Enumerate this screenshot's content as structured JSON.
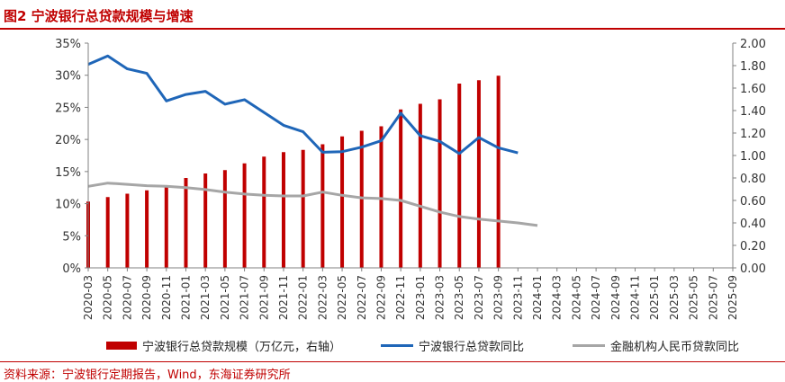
{
  "figure_title": "图2  宁波银行总贷款规模与增速",
  "source_note": "资料来源：宁波银行定期报告，Wind，东海证券研究所",
  "colors": {
    "bar": "#c00000",
    "loan_growth": "#1f66b8",
    "system_growth": "#a6a6a6",
    "title": "#c00000"
  },
  "chart_data": {
    "type": "bar+line",
    "title": "宁波银行总贷款规模与增速",
    "categories": [
      "2020-03",
      "2020-05",
      "2020-07",
      "2020-09",
      "2020-11",
      "2021-01",
      "2021-03",
      "2021-05",
      "2021-07",
      "2021-09",
      "2021-11",
      "2022-01",
      "2022-03",
      "2022-05",
      "2022-07",
      "2022-09",
      "2022-11",
      "2023-01",
      "2023-03",
      "2023-05",
      "2023-07",
      "2023-09",
      "2023-11",
      "2024-01",
      "2024-03",
      "2024-05",
      "2024-07",
      "2024-09",
      "2024-11",
      "2025-01",
      "2025-03",
      "2025-05",
      "2025-07",
      "2025-09"
    ],
    "left_axis": {
      "min": 0,
      "max": 35,
      "step": 5,
      "tick_labels": [
        "0%",
        "5%",
        "10%",
        "15%",
        "20%",
        "25%",
        "30%",
        "35%"
      ]
    },
    "right_axis": {
      "min": 0,
      "max": 2.0,
      "step": 0.2,
      "tick_labels": [
        "0.00",
        "0.20",
        "0.40",
        "0.60",
        "0.80",
        "1.00",
        "1.20",
        "1.40",
        "1.60",
        "1.80",
        "2.00"
      ]
    },
    "series": [
      {
        "name": "宁波银行总贷款规模（万亿元，右轴）",
        "kind": "bar",
        "axis": "right",
        "points": [
          [
            0,
            0.59
          ],
          [
            2,
            0.63
          ],
          [
            4,
            0.66
          ],
          [
            6,
            0.69
          ],
          [
            8,
            0.73
          ],
          [
            10,
            0.8
          ],
          [
            12,
            0.84
          ],
          [
            14,
            0.87
          ],
          [
            16,
            0.93
          ],
          [
            18,
            0.99
          ],
          [
            20,
            1.03
          ],
          [
            22,
            1.05
          ],
          [
            24,
            1.1
          ],
          [
            26,
            1.17
          ],
          [
            28,
            1.22
          ],
          [
            30,
            1.26
          ],
          [
            32,
            1.41
          ],
          [
            34,
            1.46
          ],
          [
            36,
            1.5
          ],
          [
            38,
            1.64
          ],
          [
            40,
            1.67
          ],
          [
            42,
            1.71
          ]
        ]
      },
      {
        "name": "宁波银行总贷款同比",
        "kind": "line",
        "axis": "left",
        "points": [
          [
            0,
            31.7
          ],
          [
            2,
            33.0
          ],
          [
            4,
            31.0
          ],
          [
            6,
            30.3
          ],
          [
            8,
            26.0
          ],
          [
            10,
            27.0
          ],
          [
            12,
            27.5
          ],
          [
            14,
            25.5
          ],
          [
            16,
            26.2
          ],
          [
            18,
            24.2
          ],
          [
            20,
            22.2
          ],
          [
            22,
            21.2
          ],
          [
            24,
            18.0
          ],
          [
            26,
            18.1
          ],
          [
            28,
            18.8
          ],
          [
            30,
            19.8
          ],
          [
            32,
            24.1
          ],
          [
            34,
            20.6
          ],
          [
            36,
            19.7
          ],
          [
            38,
            17.8
          ],
          [
            40,
            20.3
          ],
          [
            42,
            18.7
          ],
          [
            44,
            17.9
          ]
        ]
      },
      {
        "name": "金融机构人民币贷款同比",
        "kind": "line",
        "axis": "left",
        "points": [
          [
            0,
            12.7
          ],
          [
            2,
            13.2
          ],
          [
            4,
            13.0
          ],
          [
            6,
            12.8
          ],
          [
            8,
            12.7
          ],
          [
            10,
            12.5
          ],
          [
            12,
            12.2
          ],
          [
            14,
            11.8
          ],
          [
            16,
            11.5
          ],
          [
            18,
            11.3
          ],
          [
            20,
            11.2
          ],
          [
            22,
            11.2
          ],
          [
            24,
            11.8
          ],
          [
            26,
            11.3
          ],
          [
            28,
            10.9
          ],
          [
            30,
            10.8
          ],
          [
            32,
            10.5
          ],
          [
            34,
            9.6
          ],
          [
            36,
            8.7
          ],
          [
            38,
            8.0
          ],
          [
            40,
            7.6
          ],
          [
            42,
            7.3
          ],
          [
            44,
            7.0
          ],
          [
            46,
            6.6
          ]
        ]
      }
    ]
  }
}
